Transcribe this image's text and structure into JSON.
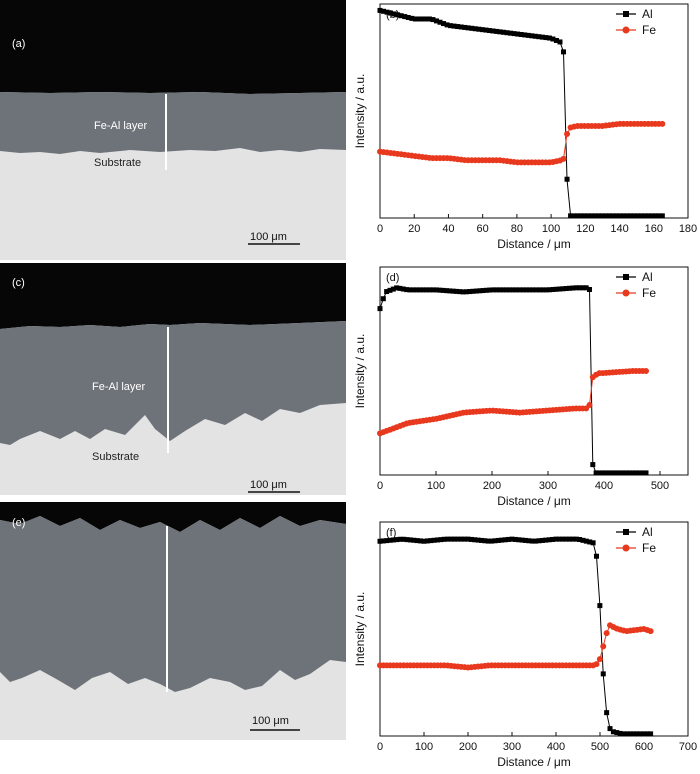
{
  "micrographs": [
    {
      "panel_label": "(a)",
      "layer_label": "Fe-Al layer",
      "substrate_label": "Substrate",
      "scale_label": "100 μm"
    },
    {
      "panel_label": "(c)",
      "layer_label": "Fe-Al layer",
      "substrate_label": "Substrate",
      "scale_label": "100 μm"
    },
    {
      "panel_label": "(e)",
      "layer_label": "",
      "substrate_label": "",
      "scale_label": "100 μm"
    }
  ],
  "colors": {
    "al_series": "#000000",
    "fe_series": "#e8391f",
    "layer_gray": "#6e737a",
    "substrate_gray": "#e3e3e3"
  },
  "chart_data": [
    {
      "type": "line",
      "panel_label": "(b)",
      "xlabel": "Distance / μm",
      "ylabel": "Intensity / a.u.",
      "xlim": [
        0,
        180
      ],
      "ylim": [
        0,
        100
      ],
      "xticks": [
        0,
        20,
        40,
        60,
        80,
        100,
        120,
        140,
        160,
        180
      ],
      "legend_position": "top-right",
      "series": [
        {
          "name": "Al",
          "marker": "square",
          "x": [
            0,
            10,
            20,
            30,
            40,
            50,
            60,
            70,
            80,
            90,
            100,
            106,
            108,
            109,
            110,
            111,
            120,
            130,
            140,
            150,
            160,
            165
          ],
          "values": [
            97,
            95,
            93,
            93,
            90,
            89,
            88,
            87,
            86,
            85,
            84,
            82,
            75,
            25,
            3,
            1,
            1,
            1,
            1,
            1,
            1,
            1
          ]
        },
        {
          "name": "Fe",
          "marker": "circle",
          "x": [
            0,
            10,
            20,
            30,
            40,
            50,
            60,
            70,
            80,
            90,
            100,
            106,
            108,
            109,
            110,
            115,
            120,
            130,
            140,
            150,
            160,
            165
          ],
          "values": [
            31,
            30,
            29,
            28,
            28,
            27,
            27,
            27,
            26,
            26,
            26,
            27,
            28,
            38,
            42,
            43,
            43,
            43,
            44,
            44,
            44,
            44
          ]
        }
      ]
    },
    {
      "type": "line",
      "panel_label": "(d)",
      "xlabel": "Distance / μm",
      "ylabel": "Intensity / a.u.",
      "xlim": [
        0,
        550
      ],
      "ylim": [
        0,
        100
      ],
      "xticks": [
        0,
        100,
        200,
        300,
        400,
        500
      ],
      "legend_position": "top-right",
      "series": [
        {
          "name": "Al",
          "marker": "square",
          "x": [
            0,
            10,
            30,
            50,
            100,
            150,
            200,
            250,
            300,
            350,
            370,
            375,
            378,
            380,
            385,
            400,
            450,
            475
          ],
          "values": [
            80,
            88,
            90,
            89,
            89,
            88,
            89,
            89,
            89,
            90,
            90,
            89,
            60,
            5,
            1,
            1,
            1,
            1
          ]
        },
        {
          "name": "Fe",
          "marker": "circle",
          "x": [
            0,
            20,
            50,
            100,
            150,
            200,
            250,
            300,
            350,
            370,
            375,
            380,
            390,
            400,
            450,
            475
          ],
          "values": [
            20,
            22,
            25,
            27,
            30,
            31,
            30,
            31,
            32,
            32,
            34,
            47,
            49,
            49,
            50,
            50
          ]
        }
      ]
    },
    {
      "type": "line",
      "panel_label": "(f)",
      "xlabel": "Distance / μm",
      "ylabel": "Intensity / a.u.",
      "xlim": [
        0,
        700
      ],
      "ylim": [
        0,
        100
      ],
      "xticks": [
        0,
        100,
        200,
        300,
        400,
        500,
        600,
        700
      ],
      "legend_position": "top-right",
      "series": [
        {
          "name": "Al",
          "marker": "square",
          "x": [
            0,
            50,
            100,
            150,
            200,
            250,
            300,
            350,
            400,
            450,
            490,
            500,
            510,
            520,
            530,
            550,
            600,
            615
          ],
          "values": [
            91,
            92,
            91,
            92,
            92,
            91,
            92,
            91,
            92,
            92,
            90,
            60,
            18,
            4,
            2,
            1,
            1,
            1
          ]
        },
        {
          "name": "Fe",
          "marker": "circle",
          "x": [
            0,
            50,
            100,
            150,
            200,
            250,
            300,
            350,
            400,
            450,
            490,
            500,
            510,
            520,
            540,
            560,
            600,
            615
          ],
          "values": [
            33,
            33,
            33,
            33,
            32,
            33,
            33,
            33,
            33,
            33,
            33,
            36,
            44,
            52,
            50,
            49,
            50,
            49
          ]
        }
      ]
    }
  ]
}
